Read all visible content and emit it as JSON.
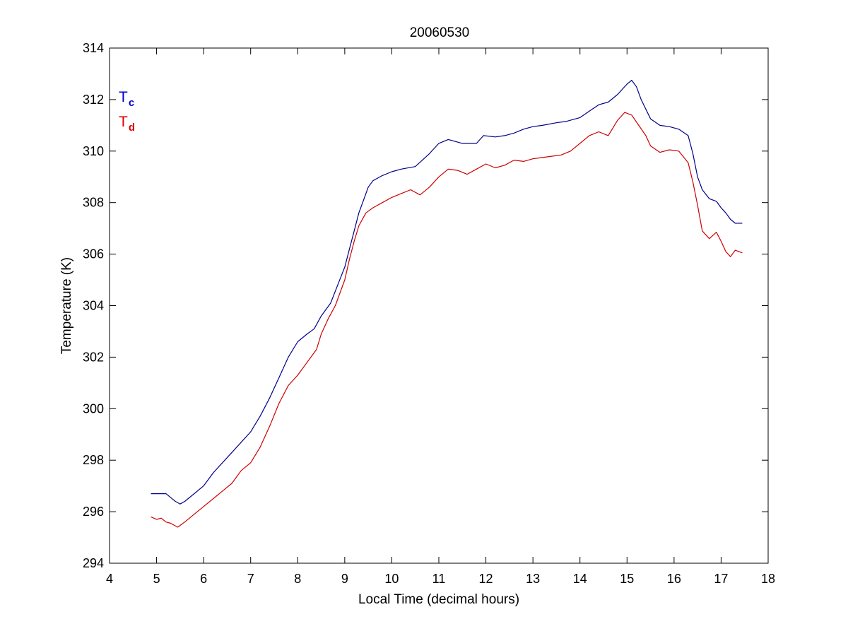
{
  "chart_data": {
    "type": "line",
    "title": "20060530",
    "xlabel": "Local Time (decimal hours)",
    "ylabel": "Temperature (K)",
    "xlim": [
      4,
      18
    ],
    "ylim": [
      294,
      314
    ],
    "xticks": [
      4,
      5,
      6,
      7,
      8,
      9,
      10,
      11,
      12,
      13,
      14,
      15,
      16,
      17,
      18
    ],
    "yticks": [
      294,
      296,
      298,
      300,
      302,
      304,
      306,
      308,
      310,
      312,
      314
    ],
    "grid": false,
    "legend": {
      "placement": "top-left",
      "entries": [
        {
          "main": "T",
          "sub": "c",
          "color": "#0000cc"
        },
        {
          "main": "T",
          "sub": "d",
          "color": "#dd0000"
        }
      ]
    },
    "series": [
      {
        "color": "#00008b",
        "points": [
          [
            4.88,
            296.7
          ],
          [
            5.1,
            296.7
          ],
          [
            5.2,
            296.7
          ],
          [
            5.3,
            296.55
          ],
          [
            5.4,
            296.4
          ],
          [
            5.5,
            296.3
          ],
          [
            5.6,
            296.4
          ],
          [
            5.8,
            296.7
          ],
          [
            6.0,
            297.0
          ],
          [
            6.2,
            297.5
          ],
          [
            6.4,
            297.9
          ],
          [
            6.6,
            298.3
          ],
          [
            6.8,
            298.7
          ],
          [
            7.0,
            299.1
          ],
          [
            7.2,
            299.7
          ],
          [
            7.4,
            300.4
          ],
          [
            7.6,
            301.2
          ],
          [
            7.8,
            302.0
          ],
          [
            8.0,
            302.6
          ],
          [
            8.2,
            302.9
          ],
          [
            8.35,
            303.1
          ],
          [
            8.5,
            303.6
          ],
          [
            8.7,
            304.1
          ],
          [
            8.85,
            304.8
          ],
          [
            9.0,
            305.5
          ],
          [
            9.1,
            306.2
          ],
          [
            9.2,
            306.9
          ],
          [
            9.3,
            307.6
          ],
          [
            9.4,
            308.1
          ],
          [
            9.5,
            308.6
          ],
          [
            9.6,
            308.85
          ],
          [
            9.8,
            309.05
          ],
          [
            10.0,
            309.2
          ],
          [
            10.2,
            309.3
          ],
          [
            10.5,
            309.4
          ],
          [
            10.8,
            309.9
          ],
          [
            11.0,
            310.3
          ],
          [
            11.2,
            310.45
          ],
          [
            11.5,
            310.3
          ],
          [
            11.8,
            310.3
          ],
          [
            11.95,
            310.6
          ],
          [
            12.2,
            310.55
          ],
          [
            12.4,
            310.6
          ],
          [
            12.6,
            310.7
          ],
          [
            12.8,
            310.85
          ],
          [
            13.0,
            310.95
          ],
          [
            13.2,
            311.0
          ],
          [
            13.5,
            311.1
          ],
          [
            13.7,
            311.15
          ],
          [
            14.0,
            311.3
          ],
          [
            14.2,
            311.55
          ],
          [
            14.4,
            311.8
          ],
          [
            14.6,
            311.9
          ],
          [
            14.8,
            312.2
          ],
          [
            15.0,
            312.6
          ],
          [
            15.1,
            312.75
          ],
          [
            15.2,
            312.5
          ],
          [
            15.3,
            312.0
          ],
          [
            15.5,
            311.25
          ],
          [
            15.7,
            311.0
          ],
          [
            15.9,
            310.95
          ],
          [
            16.1,
            310.85
          ],
          [
            16.3,
            310.6
          ],
          [
            16.4,
            309.9
          ],
          [
            16.5,
            309.0
          ],
          [
            16.6,
            308.5
          ],
          [
            16.75,
            308.15
          ],
          [
            16.9,
            308.05
          ],
          [
            17.0,
            307.8
          ],
          [
            17.1,
            307.6
          ],
          [
            17.2,
            307.35
          ],
          [
            17.3,
            307.2
          ],
          [
            17.45,
            307.2
          ]
        ]
      },
      {
        "color": "#cc0000",
        "points": [
          [
            4.88,
            295.8
          ],
          [
            5.0,
            295.7
          ],
          [
            5.1,
            295.75
          ],
          [
            5.2,
            295.6
          ],
          [
            5.3,
            295.55
          ],
          [
            5.45,
            295.4
          ],
          [
            5.6,
            295.6
          ],
          [
            5.8,
            295.9
          ],
          [
            6.0,
            296.2
          ],
          [
            6.2,
            296.5
          ],
          [
            6.4,
            296.8
          ],
          [
            6.6,
            297.1
          ],
          [
            6.8,
            297.6
          ],
          [
            7.0,
            297.9
          ],
          [
            7.2,
            298.5
          ],
          [
            7.4,
            299.3
          ],
          [
            7.6,
            300.2
          ],
          [
            7.8,
            300.9
          ],
          [
            8.0,
            301.3
          ],
          [
            8.2,
            301.8
          ],
          [
            8.4,
            302.3
          ],
          [
            8.5,
            302.9
          ],
          [
            8.65,
            303.5
          ],
          [
            8.8,
            304.0
          ],
          [
            9.0,
            305.0
          ],
          [
            9.1,
            305.8
          ],
          [
            9.2,
            306.5
          ],
          [
            9.3,
            307.1
          ],
          [
            9.45,
            307.6
          ],
          [
            9.6,
            307.8
          ],
          [
            9.8,
            308.0
          ],
          [
            10.0,
            308.2
          ],
          [
            10.2,
            308.35
          ],
          [
            10.4,
            308.5
          ],
          [
            10.6,
            308.3
          ],
          [
            10.8,
            308.6
          ],
          [
            11.0,
            309.0
          ],
          [
            11.2,
            309.3
          ],
          [
            11.4,
            309.25
          ],
          [
            11.6,
            309.1
          ],
          [
            11.8,
            309.3
          ],
          [
            12.0,
            309.5
          ],
          [
            12.2,
            309.35
          ],
          [
            12.4,
            309.45
          ],
          [
            12.6,
            309.65
          ],
          [
            12.8,
            309.6
          ],
          [
            13.0,
            309.7
          ],
          [
            13.2,
            309.75
          ],
          [
            13.4,
            309.8
          ],
          [
            13.6,
            309.85
          ],
          [
            13.8,
            310.0
          ],
          [
            14.0,
            310.3
          ],
          [
            14.2,
            310.6
          ],
          [
            14.4,
            310.75
          ],
          [
            14.6,
            310.6
          ],
          [
            14.8,
            311.2
          ],
          [
            14.95,
            311.5
          ],
          [
            15.1,
            311.4
          ],
          [
            15.25,
            311.0
          ],
          [
            15.4,
            310.6
          ],
          [
            15.5,
            310.2
          ],
          [
            15.7,
            309.95
          ],
          [
            15.9,
            310.05
          ],
          [
            16.1,
            310.0
          ],
          [
            16.3,
            309.55
          ],
          [
            16.4,
            308.8
          ],
          [
            16.5,
            307.9
          ],
          [
            16.6,
            306.9
          ],
          [
            16.75,
            306.6
          ],
          [
            16.9,
            306.85
          ],
          [
            17.0,
            306.5
          ],
          [
            17.1,
            306.1
          ],
          [
            17.2,
            305.9
          ],
          [
            17.3,
            306.15
          ],
          [
            17.45,
            306.05
          ]
        ]
      }
    ]
  }
}
